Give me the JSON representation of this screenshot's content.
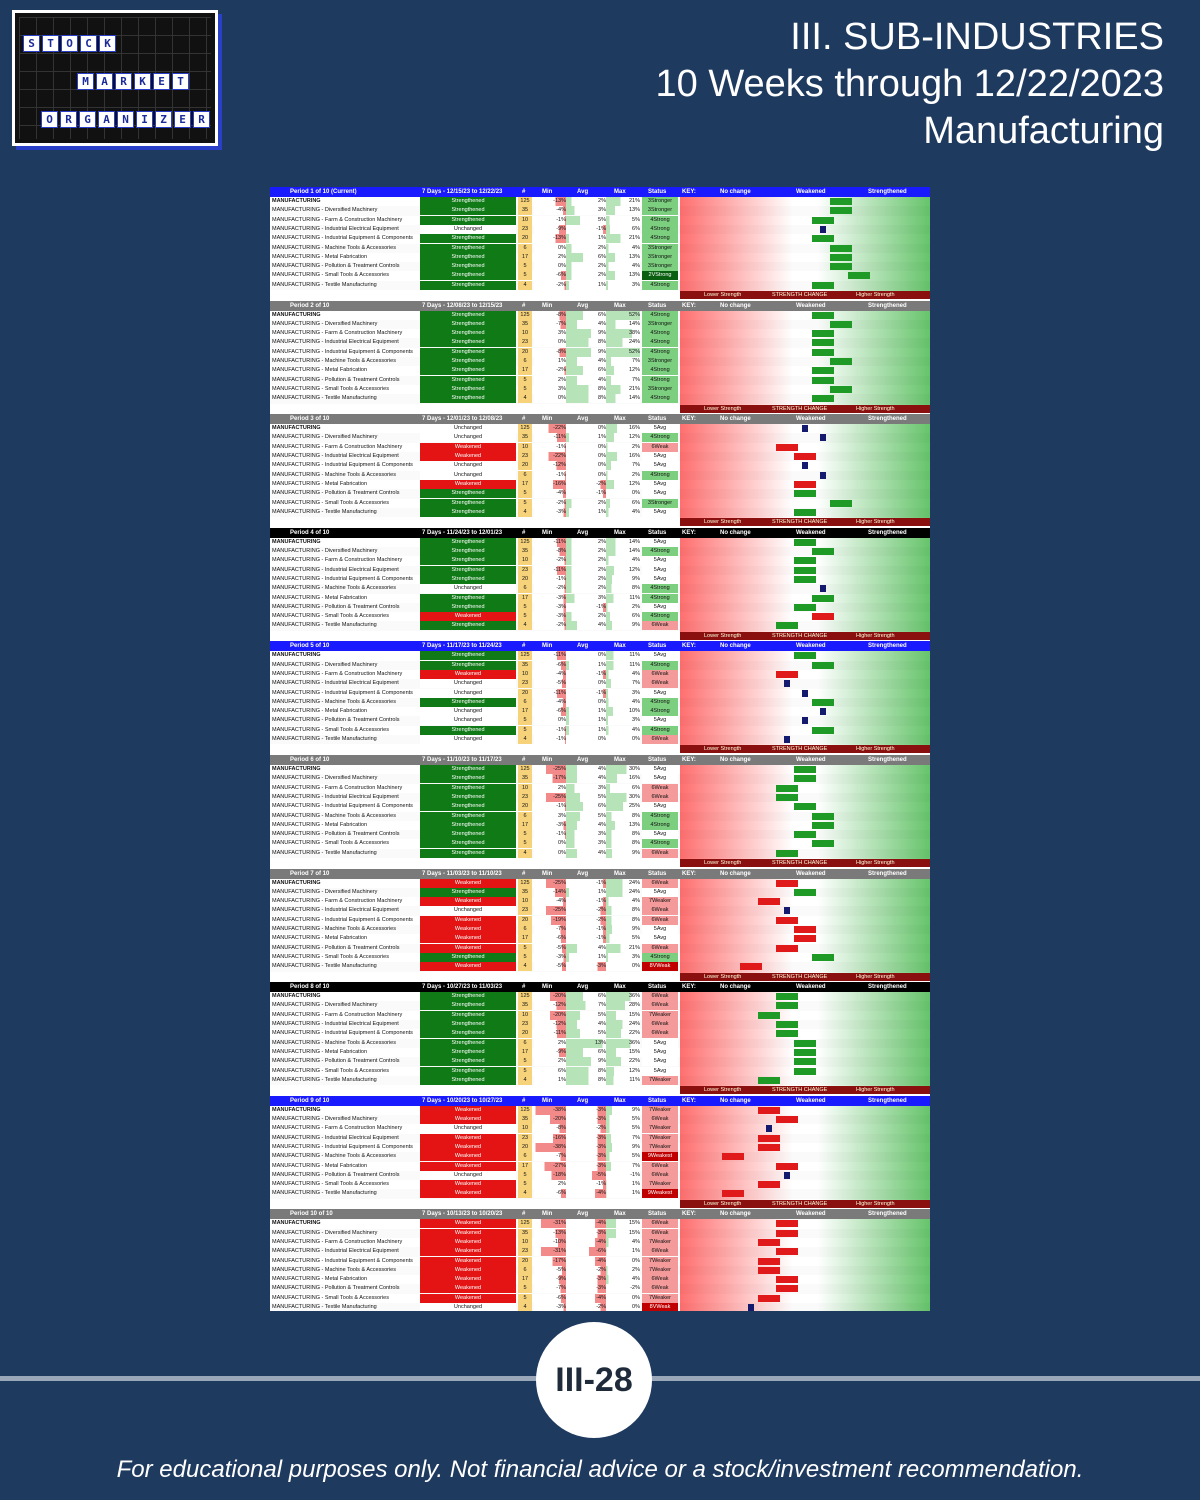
{
  "logo": {
    "rows": [
      {
        "letters": [
          "S",
          "T",
          "O",
          "C",
          "K"
        ]
      },
      {
        "letters": [
          "M",
          "A",
          "R",
          "K",
          "E",
          "T"
        ]
      },
      {
        "letters": [
          "O",
          "R",
          "G",
          "A",
          "N",
          "I",
          "Z",
          "E",
          "R"
        ]
      }
    ]
  },
  "title": {
    "line1": "III. SUB-INDUSTRIES",
    "line2": "10 Weeks through 12/22/2023",
    "line3": "Manufacturing"
  },
  "table": {
    "col_headers": {
      "count": "#",
      "min": "Min",
      "avg": "Avg",
      "max": "Max",
      "status": "Status",
      "key": "KEY:",
      "no_change": "No change",
      "weakened": "Weakened",
      "strengthened": "Strengthened"
    },
    "strength_labels": {
      "lower": "Lower Strength",
      "change": "STRENGTH CHANGE",
      "higher": "Higher Strength"
    },
    "colors": {
      "strengthened": "#0f7a16",
      "weakened": "#e41414",
      "unchanged": "#ffffff",
      "header_blue": "#1a1aff",
      "header_gray": "#7a7a7a",
      "header_black": "#000000"
    },
    "names": [
      "MANUFACTURING",
      "MANUFACTURING - Diversified Machinery",
      "MANUFACTURING - Farm & Construction Machinery",
      "MANUFACTURING - Industrial Electrical Equipment",
      "MANUFACTURING - Industrial Equipment & Components",
      "MANUFACTURING - Machine Tools & Accessories",
      "MANUFACTURING - Metal Fabrication",
      "MANUFACTURING - Pollution & Treatment Controls",
      "MANUFACTURING - Small Tools & Accessories",
      "MANUFACTURING - Textile Manufacturing"
    ],
    "counts": [
      "125",
      "35",
      "10",
      "23",
      "20",
      "6",
      "17",
      "5",
      "5",
      "4"
    ],
    "periods": [
      {
        "label": "Period 1 of 10 (Current)",
        "dates": "7 Days - 12/15/23 to 12/22/23",
        "hdr": "blue",
        "status": [
          "Strengthened",
          "Strengthened",
          "Strengthened",
          "Unchanged",
          "Strengthened",
          "Strengthened",
          "Strengthened",
          "Strengthened",
          "Strengthened",
          "Strengthened"
        ],
        "min": [
          "-13%",
          "-4%",
          "-1%",
          "-9%",
          "-13%",
          "0%",
          "2%",
          "0%",
          "-6%",
          "-2%"
        ],
        "avg": [
          "2%",
          "3%",
          "5%",
          "-1%",
          "1%",
          "2%",
          "6%",
          "2%",
          "2%",
          "1%"
        ],
        "max": [
          "21%",
          "13%",
          "5%",
          "6%",
          "21%",
          "4%",
          "13%",
          "4%",
          "13%",
          "3%"
        ],
        "ss": [
          "3Stronger",
          "3Stronger",
          "4Strong",
          "4Strong",
          "4Strong",
          "3Stronger",
          "3Stronger",
          "3Stronger",
          "2VStrong",
          "4Strong"
        ]
      },
      {
        "label": "Period 2 of 10",
        "dates": "7 Days - 12/08/23 to 12/15/23",
        "hdr": "gray",
        "status": [
          "Strengthened",
          "Strengthened",
          "Strengthened",
          "Strengthened",
          "Strengthened",
          "Strengthened",
          "Strengthened",
          "Strengthened",
          "Strengthened",
          "Strengthened"
        ],
        "min": [
          "-8%",
          "-7%",
          "3%",
          "0%",
          "-8%",
          "1%",
          "-2%",
          "2%",
          "3%",
          "0%"
        ],
        "avg": [
          "6%",
          "4%",
          "9%",
          "8%",
          "9%",
          "4%",
          "6%",
          "4%",
          "8%",
          "8%"
        ],
        "max": [
          "52%",
          "14%",
          "38%",
          "24%",
          "52%",
          "7%",
          "12%",
          "7%",
          "21%",
          "14%"
        ],
        "ss": [
          "4Strong",
          "3Stronger",
          "4Strong",
          "4Strong",
          "4Strong",
          "3Stronger",
          "4Strong",
          "4Strong",
          "3Stronger",
          "4Strong"
        ]
      },
      {
        "label": "Period 3 of 10",
        "dates": "7 Days - 12/01/23 to 12/08/23",
        "hdr": "gray",
        "status": [
          "Unchanged",
          "Unchanged",
          "Weakened",
          "Weakened",
          "Unchanged",
          "Unchanged",
          "Weakened",
          "Strengthened",
          "Strengthened",
          "Strengthened"
        ],
        "min": [
          "-22%",
          "-11%",
          "-1%",
          "-22%",
          "-12%",
          "-1%",
          "-16%",
          "-4%",
          "-2%",
          "-3%"
        ],
        "avg": [
          "0%",
          "1%",
          "0%",
          "0%",
          "0%",
          "0%",
          "-2%",
          "-1%",
          "2%",
          "1%"
        ],
        "max": [
          "16%",
          "12%",
          "2%",
          "16%",
          "7%",
          "2%",
          "12%",
          "0%",
          "6%",
          "4%"
        ],
        "ss": [
          "5Avg",
          "4Strong",
          "6Weak",
          "5Avg",
          "5Avg",
          "4Strong",
          "5Avg",
          "5Avg",
          "3Stronger",
          "5Avg"
        ]
      },
      {
        "label": "Period 4 of 10",
        "dates": "7 Days - 11/24/23 to 12/01/23",
        "hdr": "black",
        "status": [
          "Strengthened",
          "Strengthened",
          "Strengthened",
          "Strengthened",
          "Strengthened",
          "Unchanged",
          "Strengthened",
          "Strengthened",
          "Weakened",
          "Strengthened"
        ],
        "min": [
          "-11%",
          "-8%",
          "-2%",
          "-11%",
          "-1%",
          "-2%",
          "-3%",
          "-3%",
          "-3%",
          "-2%"
        ],
        "avg": [
          "2%",
          "2%",
          "2%",
          "2%",
          "2%",
          "2%",
          "3%",
          "-1%",
          "2%",
          "4%"
        ],
        "max": [
          "14%",
          "14%",
          "4%",
          "12%",
          "9%",
          "8%",
          "11%",
          "2%",
          "6%",
          "9%"
        ],
        "ss": [
          "5Avg",
          "4Strong",
          "5Avg",
          "5Avg",
          "5Avg",
          "4Strong",
          "4Strong",
          "5Avg",
          "4Strong",
          "6Weak"
        ]
      },
      {
        "label": "Period 5 of 10",
        "dates": "7 Days - 11/17/23 to 11/24/23",
        "hdr": "blue",
        "status": [
          "Strengthened",
          "Strengthened",
          "Weakened",
          "Unchanged",
          "Unchanged",
          "Strengthened",
          "Unchanged",
          "Unchanged",
          "Strengthened",
          "Unchanged"
        ],
        "min": [
          "-11%",
          "-6%",
          "-4%",
          "-5%",
          "-11%",
          "-4%",
          "-6%",
          "0%",
          "-1%",
          "-1%"
        ],
        "avg": [
          "0%",
          "1%",
          "-1%",
          "0%",
          "-1%",
          "0%",
          "1%",
          "1%",
          "1%",
          "0%"
        ],
        "max": [
          "11%",
          "11%",
          "4%",
          "7%",
          "3%",
          "4%",
          "10%",
          "3%",
          "4%",
          "0%"
        ],
        "ss": [
          "5Avg",
          "4Strong",
          "6Weak",
          "6Weak",
          "5Avg",
          "4Strong",
          "4Strong",
          "5Avg",
          "4Strong",
          "6Weak"
        ]
      },
      {
        "label": "Period 6 of 10",
        "dates": "7 Days - 11/10/23 to 11/17/23",
        "hdr": "gray",
        "status": [
          "Strengthened",
          "Strengthened",
          "Strengthened",
          "Strengthened",
          "Strengthened",
          "Strengthened",
          "Strengthened",
          "Strengthened",
          "Strengthened",
          "Strengthened"
        ],
        "min": [
          "-25%",
          "-17%",
          "2%",
          "-25%",
          "-1%",
          "3%",
          "-3%",
          "-1%",
          "0%",
          "0%"
        ],
        "avg": [
          "4%",
          "4%",
          "3%",
          "5%",
          "6%",
          "5%",
          "4%",
          "3%",
          "3%",
          "4%"
        ],
        "max": [
          "30%",
          "16%",
          "6%",
          "30%",
          "25%",
          "8%",
          "13%",
          "8%",
          "8%",
          "9%"
        ],
        "ss": [
          "5Avg",
          "5Avg",
          "6Weak",
          "6Weak",
          "5Avg",
          "4Strong",
          "4Strong",
          "5Avg",
          "4Strong",
          "6Weak"
        ]
      },
      {
        "label": "Period 7 of 10",
        "dates": "7 Days - 11/03/23 to 11/10/23",
        "hdr": "gray",
        "status": [
          "Weakened",
          "Strengthened",
          "Weakened",
          "Unchanged",
          "Weakened",
          "Weakened",
          "Weakened",
          "Weakened",
          "Strengthened",
          "Weakened"
        ],
        "min": [
          "-25%",
          "-14%",
          "-4%",
          "-25%",
          "-19%",
          "-7%",
          "-6%",
          "-5%",
          "-3%",
          "-5%"
        ],
        "avg": [
          "-1%",
          "1%",
          "-1%",
          "-2%",
          "-2%",
          "-1%",
          "-1%",
          "4%",
          "1%",
          "-3%"
        ],
        "max": [
          "24%",
          "24%",
          "4%",
          "8%",
          "8%",
          "9%",
          "5%",
          "21%",
          "3%",
          "0%"
        ],
        "ss": [
          "6Weak",
          "5Avg",
          "7Weaker",
          "6Weak",
          "6Weak",
          "5Avg",
          "5Avg",
          "6Weak",
          "4Strong",
          "8VWeak"
        ]
      },
      {
        "label": "Period 8 of 10",
        "dates": "7 Days - 10/27/23 to 11/03/23",
        "hdr": "black",
        "status": [
          "Strengthened",
          "Strengthened",
          "Strengthened",
          "Strengthened",
          "Strengthened",
          "Strengthened",
          "Strengthened",
          "Strengthened",
          "Strengthened",
          "Strengthened"
        ],
        "min": [
          "-20%",
          "-12%",
          "-20%",
          "-12%",
          "-11%",
          "2%",
          "-9%",
          "2%",
          "6%",
          "1%"
        ],
        "avg": [
          "6%",
          "7%",
          "5%",
          "4%",
          "5%",
          "13%",
          "6%",
          "9%",
          "8%",
          "8%"
        ],
        "max": [
          "36%",
          "28%",
          "15%",
          "24%",
          "22%",
          "36%",
          "15%",
          "22%",
          "12%",
          "11%"
        ],
        "ss": [
          "6Weak",
          "6Weak",
          "7Weaker",
          "6Weak",
          "6Weak",
          "5Avg",
          "5Avg",
          "5Avg",
          "5Avg",
          "7Weaker"
        ]
      },
      {
        "label": "Period 9 of 10",
        "dates": "7 Days - 10/20/23 to 10/27/23",
        "hdr": "blue",
        "status": [
          "Weakened",
          "Weakened",
          "Unchanged",
          "Weakened",
          "Weakened",
          "Weakened",
          "Weakened",
          "Unchanged",
          "Weakened",
          "Weakened"
        ],
        "min": [
          "-38%",
          "-20%",
          "-8%",
          "-16%",
          "-38%",
          "-7%",
          "-27%",
          "-18%",
          "2%",
          "-6%"
        ],
        "avg": [
          "-3%",
          "-3%",
          "-2%",
          "-3%",
          "-3%",
          "-3%",
          "-3%",
          "-5%",
          "-1%",
          "-4%"
        ],
        "max": [
          "9%",
          "5%",
          "5%",
          "7%",
          "9%",
          "5%",
          "7%",
          "-1%",
          "1%",
          "1%"
        ],
        "ss": [
          "7Weaker",
          "6Weak",
          "7Weaker",
          "7Weaker",
          "7Weaker",
          "9Weakest",
          "6Weak",
          "6Weak",
          "7Weaker",
          "9Weakest"
        ]
      },
      {
        "label": "Period 10 of 10",
        "dates": "7 Days - 10/13/23 to 10/20/23",
        "hdr": "gray",
        "status": [
          "Weakened",
          "Weakened",
          "Weakened",
          "Weakened",
          "Weakened",
          "Weakened",
          "Weakened",
          "Weakened",
          "Weakened",
          "Unchanged"
        ],
        "min": [
          "-31%",
          "-13%",
          "-10%",
          "-31%",
          "-17%",
          "-5%",
          "-9%",
          "-7%",
          "-6%",
          "-3%"
        ],
        "avg": [
          "-4%",
          "-3%",
          "-4%",
          "-6%",
          "-4%",
          "-2%",
          "-3%",
          "-3%",
          "-4%",
          "-2%"
        ],
        "max": [
          "15%",
          "15%",
          "4%",
          "1%",
          "0%",
          "2%",
          "4%",
          "-2%",
          "0%",
          "0%"
        ],
        "ss": [
          "6Weak",
          "6Weak",
          "7Weaker",
          "6Weak",
          "7Weaker",
          "7Weaker",
          "6Weak",
          "6Weak",
          "7Weaker",
          "8VWeak"
        ]
      }
    ]
  },
  "page_number": "III-28",
  "disclaimer": "For educational purposes only. Not financial advice or a stock/investment recommendation."
}
